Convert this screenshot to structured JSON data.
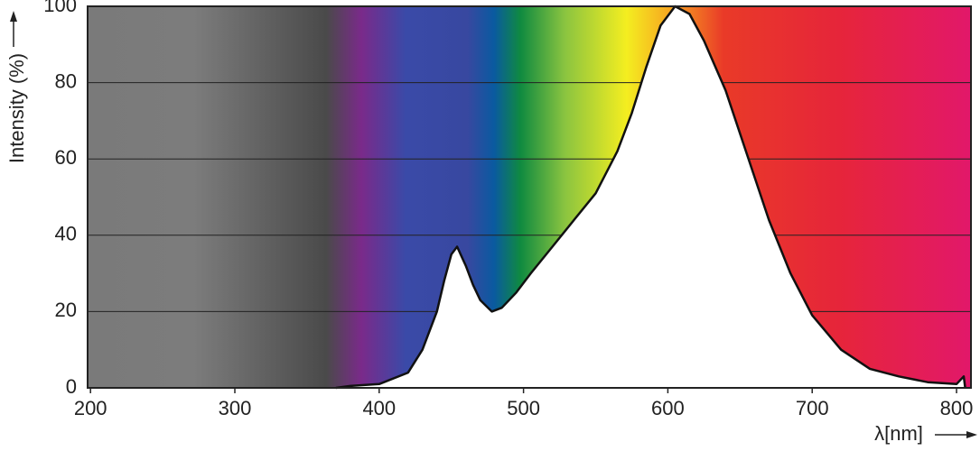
{
  "chart_data": {
    "type": "line",
    "y_label": "Intensity (%)",
    "x_label": "λ[nm]",
    "x": [
      370,
      380,
      400,
      420,
      430,
      440,
      445,
      450,
      454,
      460,
      465,
      470,
      478,
      485,
      495,
      505,
      520,
      535,
      550,
      565,
      575,
      585,
      595,
      605,
      615,
      625,
      640,
      655,
      670,
      685,
      700,
      720,
      740,
      760,
      780,
      800,
      805,
      806
    ],
    "values": [
      0,
      0.5,
      1,
      4,
      10,
      20,
      28,
      35,
      37,
      32,
      27,
      23,
      20,
      21,
      25,
      30,
      37,
      44,
      51,
      62,
      72,
      84,
      95,
      100,
      98,
      91,
      78,
      61,
      44,
      30,
      19,
      10,
      5,
      3,
      1.5,
      1,
      3,
      0
    ],
    "color": "#111111",
    "xlim": [
      198,
      810
    ],
    "ylim": [
      0,
      100
    ],
    "xticks": [
      200,
      300,
      400,
      500,
      600,
      700,
      800
    ],
    "yticks": [
      0,
      20,
      40,
      60,
      80,
      100
    ],
    "grid": true
  }
}
